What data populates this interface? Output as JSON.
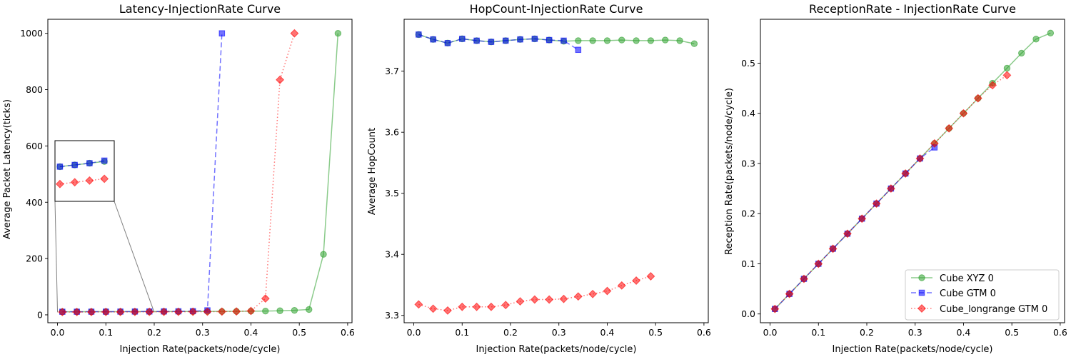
{
  "figure": {
    "legend": {
      "placement": "lower right",
      "entries": [
        {
          "label": "Cube XYZ 0",
          "color": "#2ca02c",
          "linestyle": "solid",
          "marker": "circle"
        },
        {
          "label": "Cube GTM 0",
          "color": "#0000ff",
          "linestyle": "dashed",
          "marker": "square"
        },
        {
          "label": "Cube_longrange GTM 0",
          "color": "#ff0000",
          "linestyle": "dotted",
          "marker": "diamond"
        }
      ]
    }
  },
  "chart_data": [
    {
      "type": "line",
      "title": "Latency-InjectionRate Curve",
      "xlabel": "Injection Rate(packets/node/cycle)",
      "ylabel": "Average Packet Latency(ticks)",
      "xlim": [
        -0.02,
        0.609
      ],
      "ylim": [
        -28,
        1050
      ],
      "xticks": [
        "0.0",
        "0.1",
        "0.2",
        "0.3",
        "0.4",
        "0.5",
        "0.6"
      ],
      "yticks": [
        "0",
        "200",
        "400",
        "600",
        "800",
        "1000"
      ],
      "grid": false,
      "inset": {
        "x_range": [
          0.0,
          0.12
        ],
        "y_range": [
          9,
          12.5
        ]
      },
      "series": [
        {
          "name": "Cube XYZ 0",
          "color": "#2ca02c",
          "x": [
            0.01,
            0.04,
            0.07,
            0.1,
            0.13,
            0.16,
            0.19,
            0.22,
            0.25,
            0.28,
            0.31,
            0.34,
            0.37,
            0.4,
            0.43,
            0.46,
            0.49,
            0.52,
            0.55,
            0.58
          ],
          "y": [
            11,
            11.1,
            11.2,
            11.3,
            11.4,
            11.5,
            11.6,
            11.7,
            11.8,
            11.9,
            12,
            12.2,
            12.5,
            13,
            13.5,
            14.5,
            16,
            19,
            215,
            1000
          ]
        },
        {
          "name": "Cube GTM 0",
          "color": "#0000ff",
          "x": [
            0.01,
            0.04,
            0.07,
            0.1,
            0.13,
            0.16,
            0.19,
            0.22,
            0.25,
            0.28,
            0.31,
            0.34
          ],
          "y": [
            11,
            11.1,
            11.2,
            11.35,
            11.5,
            11.7,
            11.9,
            12.1,
            12.5,
            13,
            16,
            1000
          ]
        },
        {
          "name": "Cube_longrange GTM 0",
          "color": "#ff0000",
          "x": [
            0.01,
            0.04,
            0.07,
            0.1,
            0.13,
            0.16,
            0.19,
            0.22,
            0.25,
            0.28,
            0.31,
            0.34,
            0.37,
            0.4,
            0.43,
            0.46,
            0.49
          ],
          "y": [
            10,
            10.1,
            10.2,
            10.3,
            10.4,
            10.5,
            10.6,
            10.7,
            10.8,
            11,
            11.2,
            11.5,
            12,
            14,
            58,
            835,
            1000
          ]
        }
      ]
    },
    {
      "type": "line",
      "title": "HopCount-InjectionRate Curve",
      "xlabel": "Injection Rate(packets/node/cycle)",
      "ylabel": "Average HopCount",
      "xlim": [
        -0.02,
        0.609
      ],
      "ylim": [
        3.288,
        3.785
      ],
      "xticks": [
        "0.0",
        "0.1",
        "0.2",
        "0.3",
        "0.4",
        "0.5",
        "0.6"
      ],
      "yticks": [
        "3.3",
        "3.4",
        "3.5",
        "3.6",
        "3.7"
      ],
      "grid": false,
      "series": [
        {
          "name": "Cube XYZ 0",
          "color": "#2ca02c",
          "x": [
            0.01,
            0.04,
            0.07,
            0.1,
            0.13,
            0.16,
            0.19,
            0.22,
            0.25,
            0.28,
            0.31,
            0.34,
            0.37,
            0.4,
            0.43,
            0.46,
            0.49,
            0.52,
            0.55,
            0.58
          ],
          "y": [
            3.76,
            3.752,
            3.746,
            3.753,
            3.75,
            3.748,
            3.75,
            3.752,
            3.753,
            3.751,
            3.749,
            3.75,
            3.75,
            3.75,
            3.751,
            3.75,
            3.75,
            3.751,
            3.75,
            3.745
          ]
        },
        {
          "name": "Cube GTM 0",
          "color": "#0000ff",
          "x": [
            0.01,
            0.04,
            0.07,
            0.1,
            0.13,
            0.16,
            0.19,
            0.22,
            0.25,
            0.28,
            0.31,
            0.34
          ],
          "y": [
            3.76,
            3.752,
            3.746,
            3.753,
            3.75,
            3.748,
            3.75,
            3.752,
            3.753,
            3.751,
            3.75,
            3.735
          ]
        },
        {
          "name": "Cube_longrange GTM 0",
          "color": "#ff0000",
          "x": [
            0.01,
            0.04,
            0.07,
            0.1,
            0.13,
            0.16,
            0.19,
            0.22,
            0.25,
            0.28,
            0.31,
            0.34,
            0.37,
            0.4,
            0.43,
            0.46,
            0.49
          ],
          "y": [
            3.318,
            3.311,
            3.308,
            3.314,
            3.314,
            3.314,
            3.317,
            3.323,
            3.326,
            3.326,
            3.327,
            3.331,
            3.335,
            3.34,
            3.349,
            3.357,
            3.364
          ]
        }
      ]
    },
    {
      "type": "line",
      "title": "ReceptionRate - InjectionRate Curve",
      "xlabel": "Injection Rate(packets/node/cycle)",
      "ylabel": "Reception Rate(packets/node/cycle)",
      "xlim": [
        -0.02,
        0.609
      ],
      "ylim": [
        -0.0175,
        0.5875
      ],
      "xticks": [
        "0.0",
        "0.1",
        "0.2",
        "0.3",
        "0.4",
        "0.5",
        "0.6"
      ],
      "yticks": [
        "0.0",
        "0.1",
        "0.2",
        "0.3",
        "0.4",
        "0.5"
      ],
      "grid": false,
      "series": [
        {
          "name": "Cube XYZ 0",
          "color": "#2ca02c",
          "x": [
            0.01,
            0.04,
            0.07,
            0.1,
            0.13,
            0.16,
            0.19,
            0.22,
            0.25,
            0.28,
            0.31,
            0.34,
            0.37,
            0.4,
            0.43,
            0.46,
            0.49,
            0.52,
            0.55,
            0.58
          ],
          "y": [
            0.01,
            0.04,
            0.07,
            0.1,
            0.13,
            0.16,
            0.19,
            0.22,
            0.25,
            0.28,
            0.31,
            0.34,
            0.37,
            0.4,
            0.43,
            0.46,
            0.49,
            0.52,
            0.548,
            0.56
          ]
        },
        {
          "name": "Cube GTM 0",
          "color": "#0000ff",
          "x": [
            0.01,
            0.04,
            0.07,
            0.1,
            0.13,
            0.16,
            0.19,
            0.22,
            0.25,
            0.28,
            0.31,
            0.34
          ],
          "y": [
            0.01,
            0.04,
            0.07,
            0.1,
            0.13,
            0.16,
            0.19,
            0.22,
            0.25,
            0.28,
            0.31,
            0.332
          ]
        },
        {
          "name": "Cube_longrange GTM 0",
          "color": "#ff0000",
          "x": [
            0.01,
            0.04,
            0.07,
            0.1,
            0.13,
            0.16,
            0.19,
            0.22,
            0.25,
            0.28,
            0.31,
            0.34,
            0.37,
            0.4,
            0.43,
            0.46,
            0.49
          ],
          "y": [
            0.01,
            0.04,
            0.07,
            0.1,
            0.13,
            0.16,
            0.19,
            0.22,
            0.25,
            0.28,
            0.31,
            0.34,
            0.37,
            0.4,
            0.43,
            0.456,
            0.476
          ]
        }
      ]
    }
  ]
}
